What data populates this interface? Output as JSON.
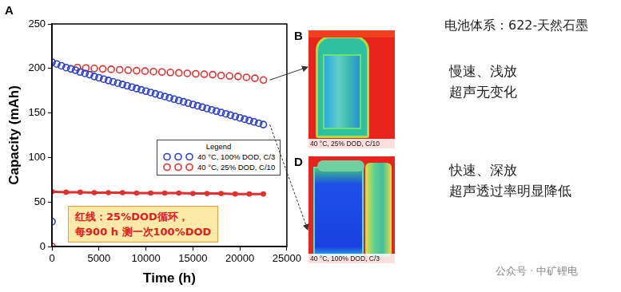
{
  "chart_data": {
    "type": "scatter",
    "panel_label": "A",
    "x_label": "Time (h)",
    "y_label": "Capacity (mAh)",
    "xlim": [
      0,
      25000
    ],
    "xticks": [
      0,
      5000,
      10000,
      15000,
      20000,
      25000
    ],
    "ylim": [
      0,
      250
    ],
    "yticks": [
      0,
      50,
      100,
      150,
      200,
      250
    ],
    "grid": false,
    "legend": "right",
    "legend_title": "Legend",
    "annotation": [
      "红线：25%DOD循环，",
      "每900 h 测一次100%DOD"
    ],
    "series": [
      {
        "name": "40 °C, 100% DOD, C/3",
        "color": "#2a3fc8",
        "marker": "circle",
        "x": [
          0,
          0,
          500,
          1000,
          1500,
          2000,
          2500,
          3000,
          3500,
          4000,
          4500,
          5000,
          5500,
          6000,
          6500,
          7000,
          7500,
          8000,
          8500,
          9000,
          9500,
          10000,
          10500,
          11000,
          11500,
          12000,
          12500,
          13000,
          13500,
          14000,
          14500,
          15000,
          15500,
          16000,
          16500,
          17000,
          17500,
          18000,
          18500,
          19000,
          19500,
          20000,
          20500,
          21000,
          21500,
          22000,
          22500
        ],
        "values": [
          28,
          207,
          205,
          203,
          201,
          199.5,
          198,
          196,
          194.5,
          193,
          191,
          189.5,
          188,
          186.5,
          185,
          183.5,
          182,
          180.5,
          179,
          177.5,
          176,
          174.5,
          173,
          171.5,
          170,
          168.5,
          167,
          165.5,
          164,
          162.5,
          161,
          159.5,
          158,
          156.5,
          155,
          153.5,
          152,
          150.5,
          149,
          147.5,
          146,
          144.5,
          143,
          141.5,
          140,
          138.5,
          137
        ]
      },
      {
        "name": "40 °C, 25% DOD, C/10",
        "color": "#e03030",
        "marker": "circle",
        "x": [
          0,
          2700,
          3600,
          4500,
          5400,
          6300,
          7200,
          8100,
          9000,
          9900,
          10800,
          11700,
          12600,
          13500,
          14400,
          15300,
          16200,
          17100,
          18000,
          18900,
          19800,
          20700,
          21600,
          22500
        ],
        "values": [
          0,
          201,
          200.5,
          200,
          199.5,
          199,
          198.5,
          198,
          197.5,
          197,
          196.5,
          196,
          195.5,
          195,
          194.5,
          194,
          193.5,
          193,
          192,
          191.5,
          191,
          190,
          189,
          187
        ]
      },
      {
        "name": "40 °C, 25% DOD, C/10",
        "color": "#e03030",
        "marker": "dot",
        "line_style": "solid",
        "x": [
          0,
          1500,
          3000,
          4500,
          6000,
          7500,
          9000,
          10500,
          12000,
          13500,
          15000,
          16500,
          18000,
          19500,
          21000,
          22500
        ],
        "values": [
          61.5,
          61,
          61,
          60.5,
          60.5,
          60.5,
          60,
          60,
          60,
          60,
          59.5,
          59.5,
          59.5,
          59,
          59,
          59
        ]
      }
    ]
  },
  "images": [
    {
      "panel_label": "B",
      "caption": "40 °C, 25% DOD, C/10"
    },
    {
      "panel_label": "D",
      "caption": "40 °C, 100% DOD, C/3"
    }
  ],
  "text": {
    "system": "电池体系：622-天然石墨",
    "slow": [
      "慢速、浅放",
      "超声无变化"
    ],
    "fast": [
      "快速、深放",
      "超声透过率明显降低"
    ],
    "watermark": "公众号 · 中矿锂电"
  }
}
